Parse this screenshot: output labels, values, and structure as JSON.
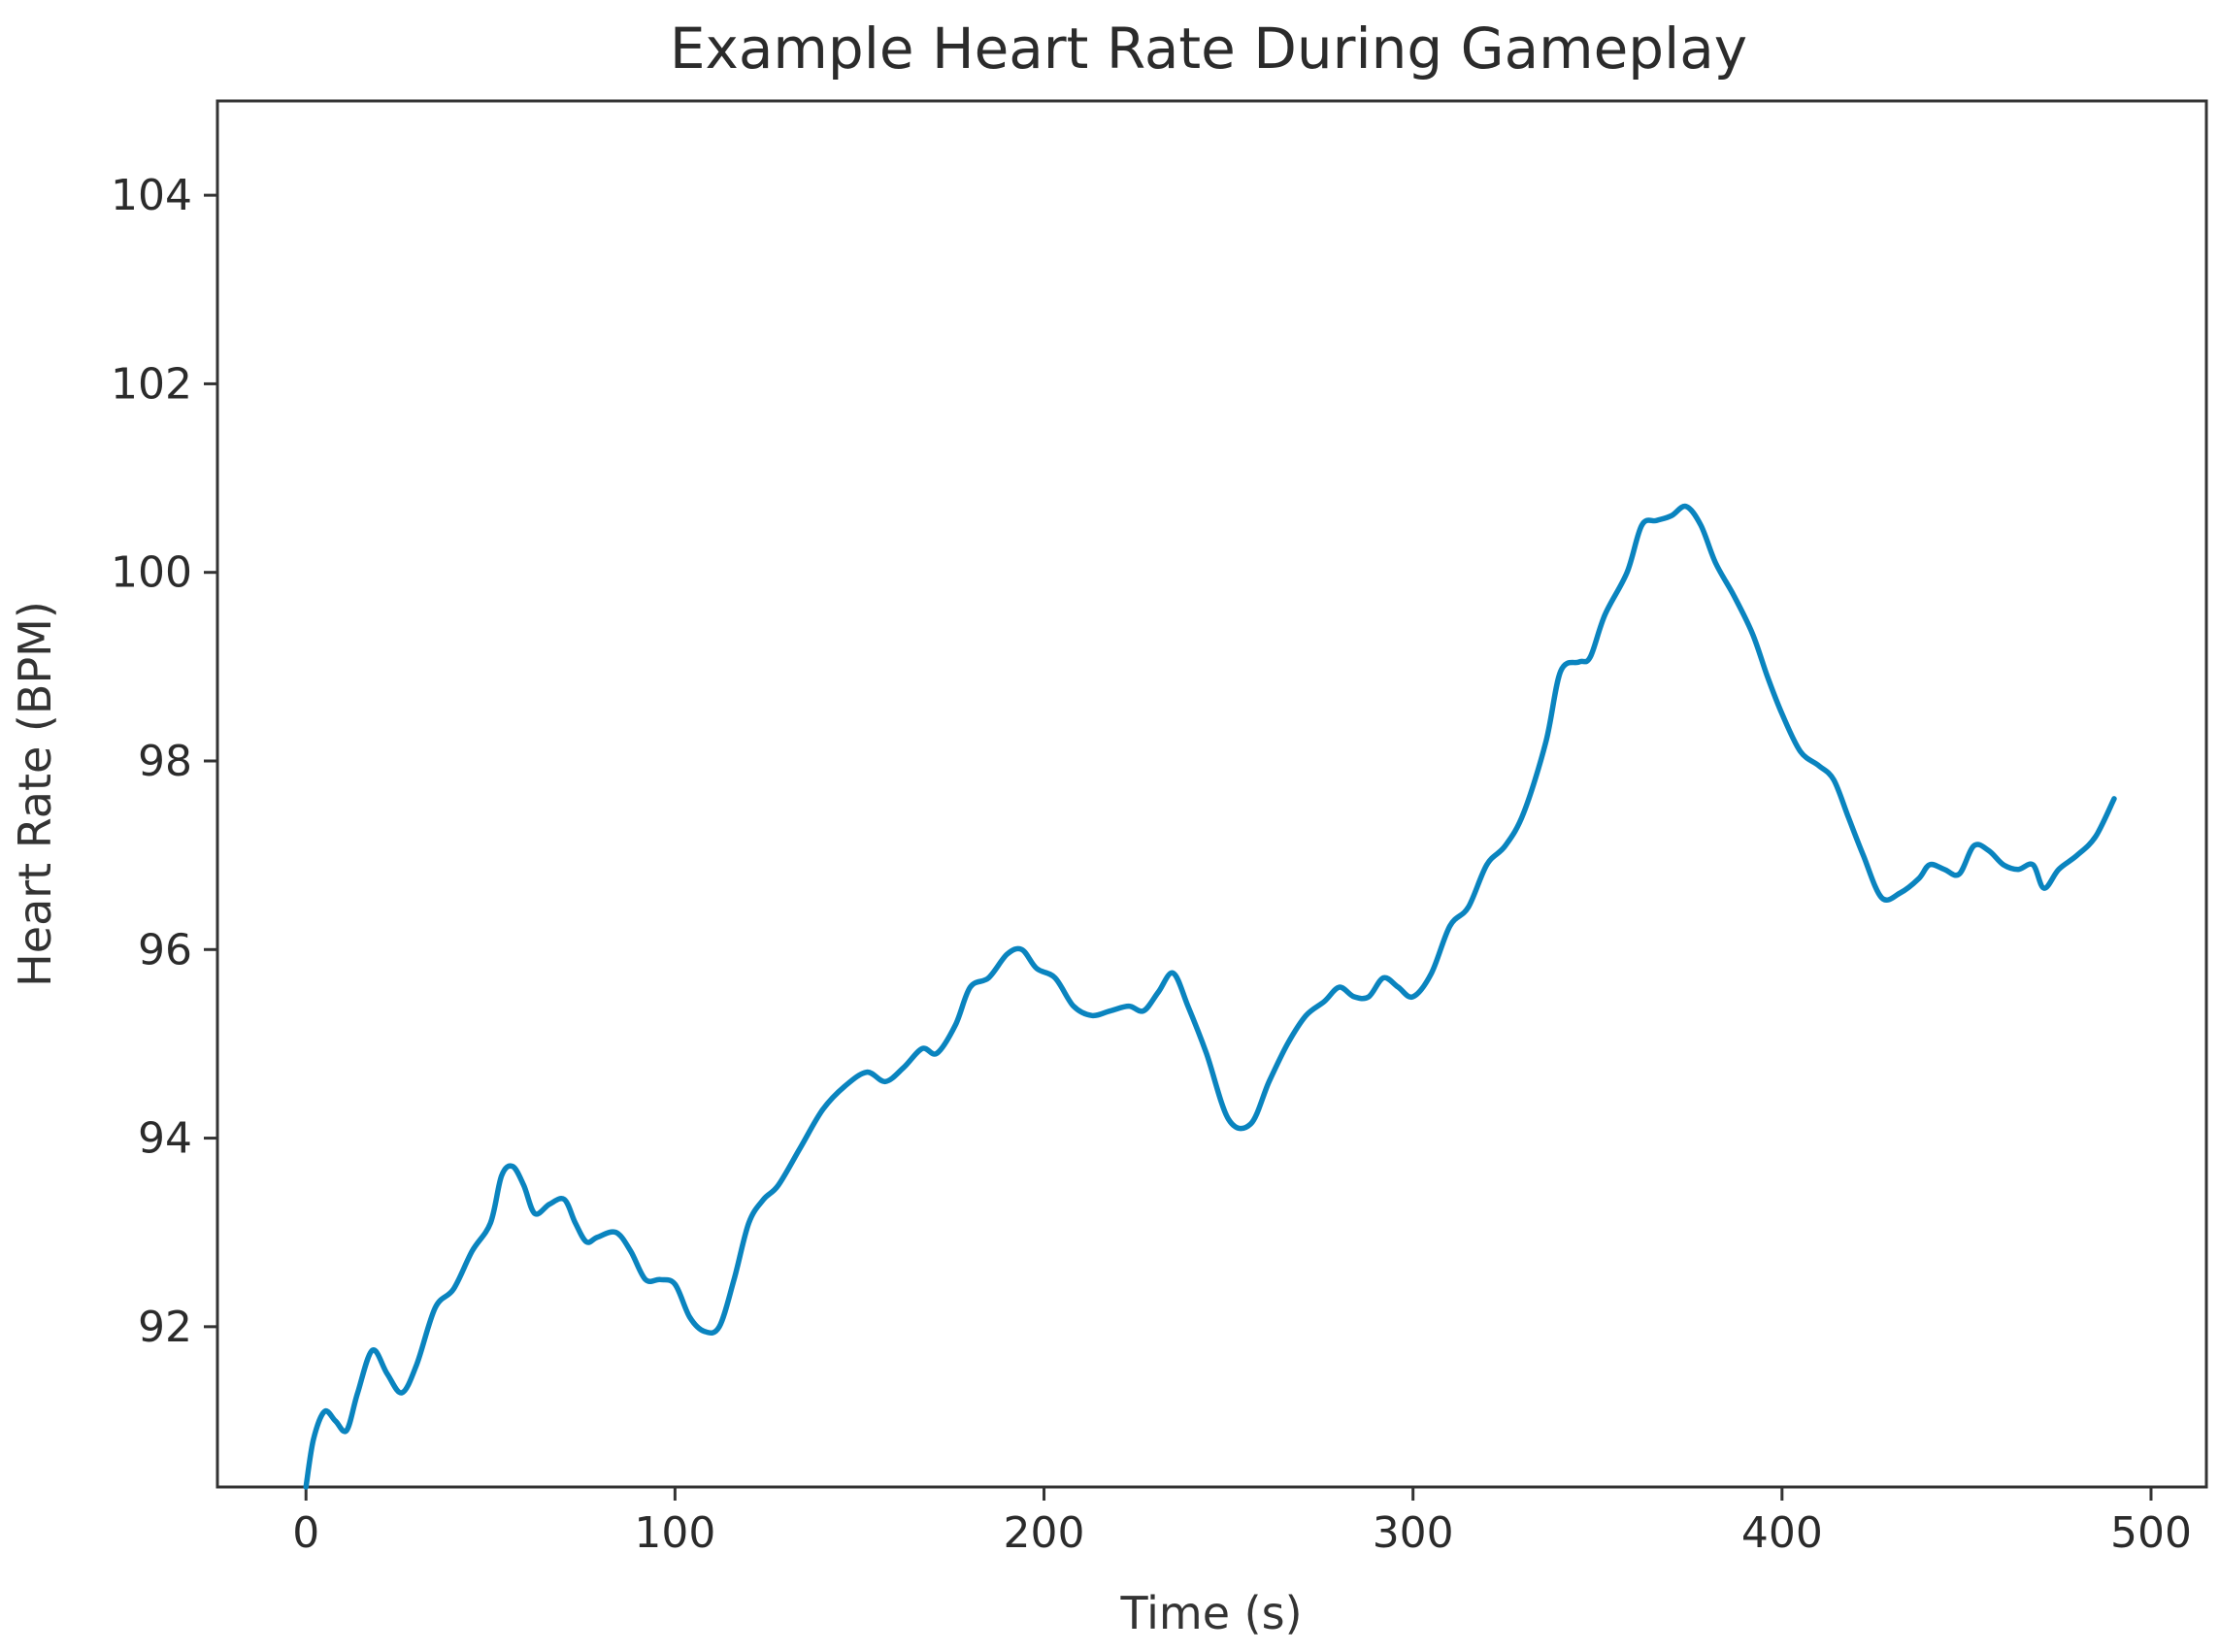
{
  "chart_data": {
    "type": "line",
    "title": "Example Heart Rate During Gameplay",
    "xlabel": "Time (s)",
    "ylabel": "Heart Rate (BPM)",
    "xlim": [
      -24,
      515
    ],
    "ylim": [
      90.3,
      105
    ],
    "xticks": [
      0,
      100,
      200,
      300,
      400,
      500
    ],
    "xtick_labels": [
      "0",
      "100",
      "200",
      "300",
      "400",
      "500"
    ],
    "yticks": [
      92,
      94,
      96,
      98,
      100,
      102,
      104
    ],
    "ytick_labels": [
      "92",
      "94",
      "96",
      "98",
      "100",
      "102",
      "104"
    ],
    "grid": false,
    "line_color": "#0a84bf",
    "series": [
      {
        "x": [
          0,
          2,
          5,
          8,
          11,
          14,
          18,
          22,
          26,
          30,
          35,
          40,
          45,
          50,
          53,
          56,
          59,
          62,
          66,
          70,
          73,
          76,
          79,
          84,
          88,
          92,
          96,
          100,
          104,
          108,
          112,
          116,
          120,
          124,
          128,
          134,
          140,
          146,
          152,
          157,
          162,
          167,
          171,
          176,
          180,
          185,
          190,
          194,
          198,
          203,
          208,
          213,
          218,
          223,
          227,
          231,
          235,
          239,
          244,
          250,
          256,
          261,
          266,
          271,
          276,
          280,
          284,
          288,
          292,
          296,
          300,
          305,
          310,
          315,
          320,
          325,
          330,
          336,
          340,
          345,
          348,
          352,
          358,
          362,
          366,
          370,
          374,
          378,
          382,
          387,
          392,
          396,
          400,
          405,
          410,
          414,
          418,
          422,
          427,
          432,
          437,
          440,
          444,
          448,
          452,
          456,
          460,
          464,
          468,
          471,
          475,
          480,
          485,
          490
        ],
        "y": [
          90.3,
          90.8,
          91.1,
          91.0,
          90.9,
          91.3,
          91.75,
          91.5,
          91.3,
          91.6,
          92.2,
          92.4,
          92.8,
          93.1,
          93.6,
          93.7,
          93.5,
          93.2,
          93.3,
          93.35,
          93.1,
          92.9,
          92.95,
          93.0,
          92.8,
          92.5,
          92.5,
          92.45,
          92.1,
          91.95,
          92.0,
          92.5,
          93.1,
          93.35,
          93.5,
          93.9,
          94.3,
          94.55,
          94.7,
          94.6,
          94.75,
          94.95,
          94.9,
          95.2,
          95.6,
          95.7,
          95.95,
          96.0,
          95.8,
          95.7,
          95.4,
          95.3,
          95.35,
          95.4,
          95.35,
          95.55,
          95.75,
          95.4,
          94.9,
          94.2,
          94.15,
          94.6,
          95.0,
          95.3,
          95.45,
          95.6,
          95.5,
          95.5,
          95.7,
          95.6,
          95.5,
          95.75,
          96.25,
          96.45,
          96.9,
          97.1,
          97.45,
          98.2,
          98.95,
          99.05,
          99.1,
          99.55,
          100.0,
          100.5,
          100.55,
          100.6,
          100.7,
          100.5,
          100.1,
          99.75,
          99.35,
          98.9,
          98.5,
          98.1,
          97.95,
          97.8,
          97.4,
          97.0,
          96.55,
          96.6,
          96.75,
          96.9,
          96.85,
          96.8,
          97.1,
          97.05,
          96.9,
          96.85,
          96.9,
          96.65,
          96.85,
          97.0,
          97.2,
          97.6
        ]
      }
    ]
  }
}
